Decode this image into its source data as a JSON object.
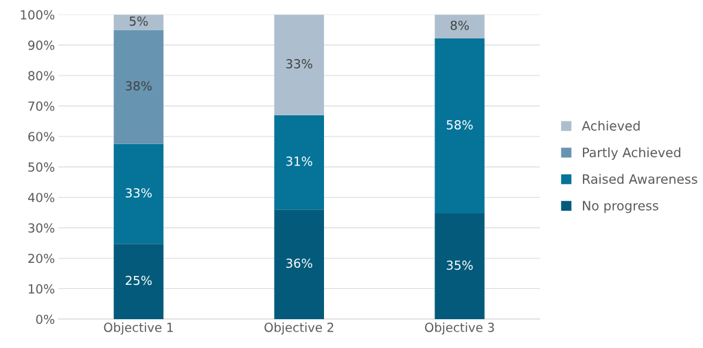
{
  "chart_data": {
    "type": "bar",
    "stacked": true,
    "categories": [
      "Objective 1",
      "Objective 2",
      "Objective 3"
    ],
    "series": [
      {
        "name": "No progress",
        "color": "#045a7a",
        "values": [
          24.7,
          36,
          34.7
        ],
        "value_labels": [
          "25%",
          "36%",
          "35%"
        ]
      },
      {
        "name": "Raised Awareness",
        "color": "#067398",
        "values": [
          32.8,
          31,
          57.5
        ],
        "value_labels": [
          "33%",
          "31%",
          "58%"
        ]
      },
      {
        "name": "Partly Achieved",
        "color": "#6795b1",
        "values": [
          37.5,
          0,
          0
        ],
        "value_labels": [
          "38%",
          null,
          null
        ]
      },
      {
        "name": "Achieved",
        "color": "#adbfce",
        "values": [
          5,
          33,
          7.8
        ],
        "value_labels": [
          "5%",
          "33%",
          "8%"
        ]
      }
    ],
    "ylim": [
      0,
      100
    ],
    "yticks": [
      {
        "value": 0,
        "label": "0%"
      },
      {
        "value": 10,
        "label": "10%"
      },
      {
        "value": 20,
        "label": "20%"
      },
      {
        "value": 30,
        "label": "30%"
      },
      {
        "value": 40,
        "label": "40%"
      },
      {
        "value": 50,
        "label": "50%"
      },
      {
        "value": 60,
        "label": "60%"
      },
      {
        "value": 70,
        "label": "70%"
      },
      {
        "value": 80,
        "label": "80%"
      },
      {
        "value": 90,
        "label": "90%"
      },
      {
        "value": 100,
        "label": "100%"
      }
    ],
    "grid": "y",
    "legend": "right"
  }
}
